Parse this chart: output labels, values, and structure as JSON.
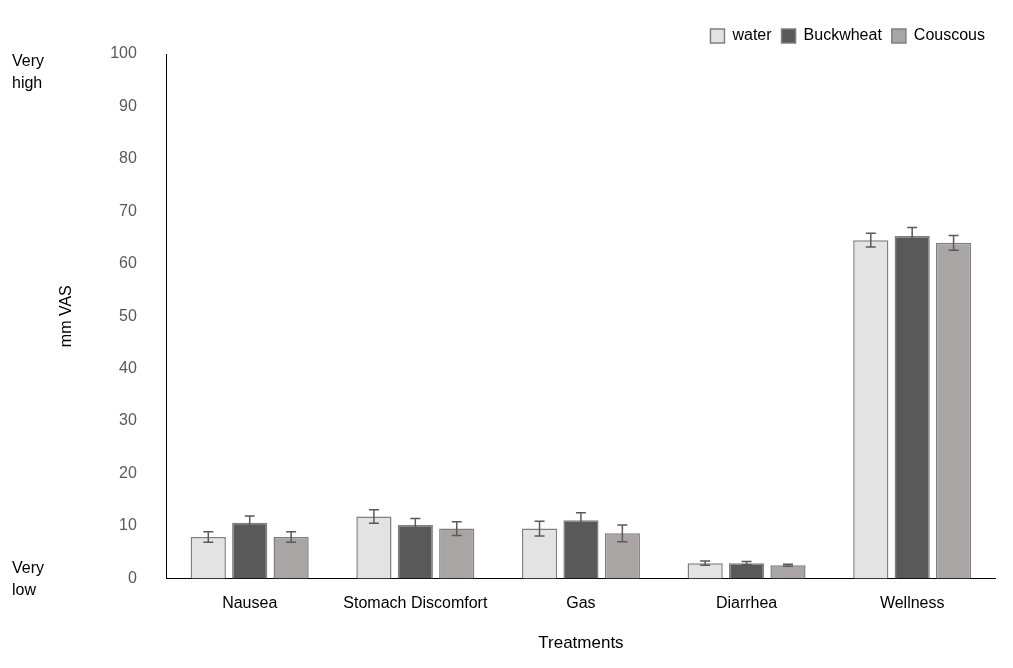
{
  "chart_data": {
    "type": "bar",
    "xlabel": "Treatments",
    "ylabel": "mm VAS",
    "annotations": [
      "Very high",
      "Very low"
    ],
    "categories": [
      "Nausea",
      "Stomach Discomfort",
      "Gas",
      "Diarrhea",
      "Wellness"
    ],
    "series": [
      {
        "name": "water",
        "color": "#e3e3e3",
        "values": [
          7.9,
          11.8,
          9.5,
          2.9,
          64.5
        ],
        "errors": [
          1.0,
          1.3,
          1.4,
          0.4,
          1.3
        ]
      },
      {
        "name": "Buckwheat",
        "color": "#595959",
        "values": [
          10.6,
          10.2,
          11.1,
          2.9,
          65.3
        ],
        "errors": [
          1.3,
          1.2,
          1.4,
          0.3,
          1.6
        ]
      },
      {
        "name": "Couscous",
        "color": "#a9a5a5",
        "values": [
          7.9,
          9.5,
          8.6,
          2.5,
          64.0
        ],
        "errors": [
          1.0,
          1.3,
          1.6,
          0.2,
          1.4
        ]
      }
    ],
    "ylim": [
      0,
      100
    ],
    "yticks": [
      0,
      10,
      20,
      30,
      40,
      50,
      60,
      70,
      80,
      90,
      100
    ],
    "grid": false,
    "legend": "top right"
  }
}
